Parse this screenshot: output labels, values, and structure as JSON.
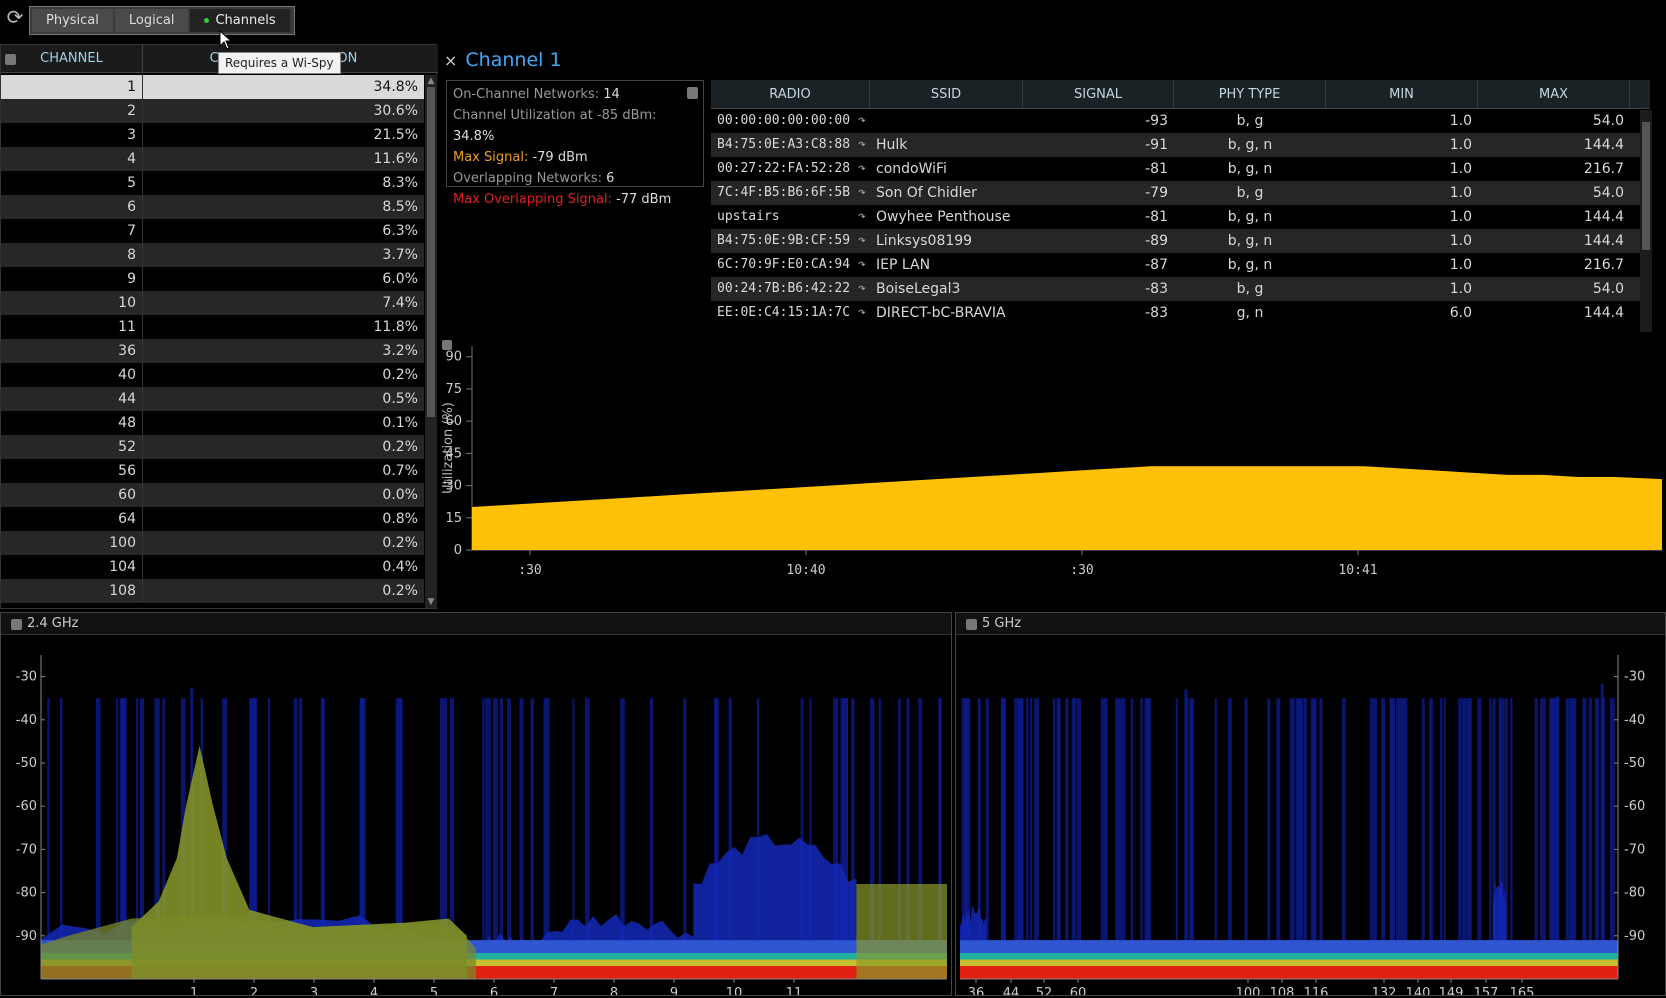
{
  "toolbar": {
    "refresh_icon": "refresh-icon",
    "tabs": [
      {
        "label": "Physical",
        "active": false
      },
      {
        "label": "Logical",
        "active": false
      },
      {
        "label": "Channels",
        "active": true
      }
    ],
    "tooltip": "Requires a Wi-Spy"
  },
  "channels_table": {
    "headers": [
      "CHANNEL",
      "CHANNEL UTILIZATION"
    ],
    "rows": [
      {
        "channel": "1",
        "util": "34.8%"
      },
      {
        "channel": "2",
        "util": "30.6%"
      },
      {
        "channel": "3",
        "util": "21.5%"
      },
      {
        "channel": "4",
        "util": "11.6%"
      },
      {
        "channel": "5",
        "util": "8.3%"
      },
      {
        "channel": "6",
        "util": "8.5%"
      },
      {
        "channel": "7",
        "util": "6.3%"
      },
      {
        "channel": "8",
        "util": "3.7%"
      },
      {
        "channel": "9",
        "util": "6.0%"
      },
      {
        "channel": "10",
        "util": "7.4%"
      },
      {
        "channel": "11",
        "util": "11.8%"
      },
      {
        "channel": "36",
        "util": "3.2%"
      },
      {
        "channel": "40",
        "util": "0.2%"
      },
      {
        "channel": "44",
        "util": "0.5%"
      },
      {
        "channel": "48",
        "util": "0.1%"
      },
      {
        "channel": "52",
        "util": "0.2%"
      },
      {
        "channel": "56",
        "util": "0.7%"
      },
      {
        "channel": "60",
        "util": "0.0%"
      },
      {
        "channel": "64",
        "util": "0.8%"
      },
      {
        "channel": "100",
        "util": "0.2%"
      },
      {
        "channel": "104",
        "util": "0.4%"
      },
      {
        "channel": "108",
        "util": "0.2%"
      }
    ]
  },
  "detail": {
    "close": "×",
    "title": "Channel 1",
    "stats": [
      {
        "label": "On-Channel Networks:",
        "value": "14",
        "color": "default"
      },
      {
        "label": "Channel Utilization at -85 dBm:",
        "value": "34.8%",
        "color": "default"
      },
      {
        "label": "Max Signal:",
        "value": "-79 dBm",
        "color": "orange"
      },
      {
        "label": "Overlapping Networks:",
        "value": "6",
        "color": "default"
      },
      {
        "label": "Max Overlapping Signal:",
        "value": "-77 dBm",
        "color": "red"
      }
    ]
  },
  "radio_table": {
    "headers": [
      "RADIO",
      "SSID",
      "SIGNAL",
      "PHY TYPE",
      "MIN",
      "MAX"
    ],
    "rows": [
      {
        "radio": "00:00:00:00:00:00",
        "ssid": "",
        "signal": "-93",
        "phy": "b, g",
        "min": "1.0",
        "max": "54.0"
      },
      {
        "radio": "B4:75:0E:A3:C8:88",
        "ssid": "Hulk",
        "signal": "-91",
        "phy": "b, g, n",
        "min": "1.0",
        "max": "144.4"
      },
      {
        "radio": "00:27:22:FA:52:28",
        "ssid": "condoWiFi",
        "signal": "-81",
        "phy": "b, g, n",
        "min": "1.0",
        "max": "216.7"
      },
      {
        "radio": "7C:4F:B5:B6:6F:5B",
        "ssid": "Son Of Chidler",
        "signal": "-79",
        "phy": "b, g",
        "min": "1.0",
        "max": "54.0"
      },
      {
        "radio": "upstairs",
        "ssid": "Owyhee Penthouse",
        "signal": "-81",
        "phy": "b, g, n",
        "min": "1.0",
        "max": "144.4"
      },
      {
        "radio": "B4:75:0E:9B:CF:59",
        "ssid": "Linksys08199",
        "signal": "-89",
        "phy": "b, g, n",
        "min": "1.0",
        "max": "144.4"
      },
      {
        "radio": "6C:70:9F:E0:CA:94",
        "ssid": "IEP LAN",
        "signal": "-87",
        "phy": "b, g, n",
        "min": "1.0",
        "max": "216.7"
      },
      {
        "radio": "00:24:7B:B6:42:22",
        "ssid": "BoiseLegal3",
        "signal": "-83",
        "phy": "b, g",
        "min": "1.0",
        "max": "54.0"
      },
      {
        "radio": "EE:0E:C4:15:1A:7C",
        "ssid": "DIRECT-bC-BRAVIA",
        "signal": "-83",
        "phy": "g, n",
        "min": "6.0",
        "max": "144.4"
      }
    ]
  },
  "chart_data": [
    {
      "type": "area",
      "ylabel": "Utilization (%)",
      "yticks": [
        0,
        15,
        30,
        45,
        60,
        75,
        90
      ],
      "ylim": [
        0,
        95
      ],
      "xtick_labels": [
        ":30",
        "10:40",
        ":30",
        "10:41"
      ],
      "x": [
        0,
        0.03,
        0.06,
        0.09,
        0.12,
        0.15,
        0.18,
        0.21,
        0.24,
        0.27,
        0.3,
        0.33,
        0.36,
        0.39,
        0.42,
        0.45,
        0.48,
        0.51,
        0.54,
        0.57,
        0.6,
        0.63,
        0.66,
        0.69,
        0.72,
        0.75,
        0.78,
        0.81,
        0.84,
        0.87,
        0.9,
        0.93,
        0.96,
        1.0
      ],
      "values": [
        20,
        21,
        22,
        23,
        24,
        25,
        26,
        27,
        28,
        29,
        30,
        31,
        32,
        33,
        34,
        35,
        36,
        37,
        38,
        39,
        39,
        39,
        39,
        39,
        39,
        39,
        38,
        37,
        36,
        35,
        35,
        34,
        34,
        33
      ],
      "color": "#ffc107",
      "grid": false
    },
    {
      "type": "heatmap",
      "title": "2.4 GHz",
      "yticks": [
        -30,
        -40,
        -50,
        -60,
        -70,
        -80,
        -90
      ],
      "xtick_labels": [
        "1",
        "2",
        "3",
        "4",
        "5",
        "6",
        "7",
        "8",
        "9",
        "10",
        "11"
      ]
    },
    {
      "type": "heatmap",
      "title": "5 GHz",
      "yticks": [
        -30,
        -40,
        -50,
        -60,
        -70,
        -80,
        -90
      ],
      "xtick_labels": [
        "36",
        "44",
        "52",
        "60",
        "100",
        "108",
        "116",
        "132",
        "140",
        "149",
        "157",
        "165"
      ]
    }
  ]
}
